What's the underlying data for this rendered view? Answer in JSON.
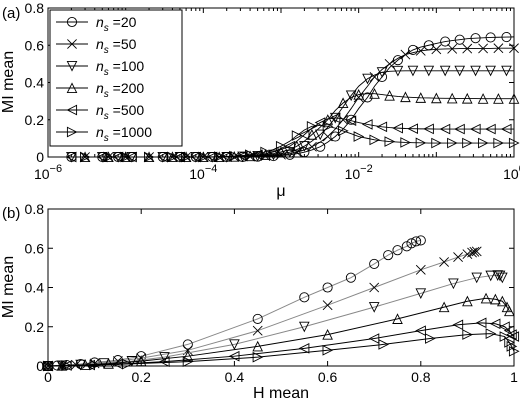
{
  "chart_data": [
    {
      "panel_label": "(a)",
      "type": "line",
      "xlabel": "μ",
      "ylabel": "MI mean",
      "xscale": "log",
      "xlim": [
        1e-06,
        1
      ],
      "ylim": [
        0,
        0.8
      ],
      "xticks": [
        {
          "value": 1e-06,
          "base": "10",
          "exp": "−6"
        },
        {
          "value": 0.0001,
          "base": "10",
          "exp": "−4"
        },
        {
          "value": 0.01,
          "base": "10",
          "exp": "−2"
        },
        {
          "value": 1,
          "base": "10",
          "exp": "0"
        }
      ],
      "yticks": [
        "0",
        "0.2",
        "0.4",
        "0.6",
        "0.8"
      ],
      "legend_position": "top-left",
      "x": [
        2e-06,
        3e-06,
        5e-06,
        6e-06,
        8e-06,
        1e-05,
        1.2e-05,
        2e-05,
        3e-05,
        4e-05,
        5e-05,
        6e-05,
        8e-05,
        0.0001,
        0.00013,
        0.00016,
        0.0002,
        0.00025,
        0.00032,
        0.0004,
        0.0005,
        0.00063,
        0.0008,
        0.001,
        0.0013,
        0.0016,
        0.002,
        0.0025,
        0.0032,
        0.004,
        0.005,
        0.0063,
        0.008,
        0.01,
        0.013,
        0.016,
        0.02,
        0.025,
        0.032,
        0.04,
        0.05,
        0.063,
        0.08,
        0.1,
        0.13,
        0.16,
        0.2,
        0.25,
        0.32,
        0.4,
        0.5,
        0.63,
        0.8,
        1.0
      ],
      "series": [
        {
          "name": "n_s=20",
          "label_base": "n",
          "label_sub": "s",
          "label_value": "=20",
          "marker": "circle",
          "line_color": "#000000",
          "values": [
            0,
            0,
            0,
            0,
            0,
            0,
            0,
            0,
            0,
            0,
            0,
            0,
            0,
            0,
            0,
            0,
            0,
            0,
            0,
            0.001,
            0.002,
            0.003,
            0.005,
            0.008,
            0.012,
            0.018,
            0.026,
            0.038,
            0.055,
            0.08,
            0.11,
            0.15,
            0.2,
            0.26,
            0.32,
            0.38,
            0.43,
            0.48,
            0.52,
            0.55,
            0.575,
            0.59,
            0.6,
            0.61,
            0.62,
            0.625,
            0.63,
            0.635,
            0.638,
            0.64,
            0.642,
            0.643,
            0.644,
            0.645
          ]
        },
        {
          "name": "n_s=50",
          "label_base": "n",
          "label_sub": "s",
          "label_value": "=50",
          "marker": "x",
          "line_color": "#000000",
          "values": [
            0,
            0,
            0,
            0,
            0,
            0,
            0,
            0,
            0,
            0,
            0,
            0,
            0,
            0,
            0,
            0,
            0,
            0,
            0.001,
            0.002,
            0.003,
            0.005,
            0.008,
            0.012,
            0.018,
            0.026,
            0.038,
            0.055,
            0.08,
            0.11,
            0.15,
            0.2,
            0.26,
            0.32,
            0.38,
            0.43,
            0.47,
            0.5,
            0.53,
            0.55,
            0.56,
            0.57,
            0.575,
            0.578,
            0.58,
            0.581,
            0.582,
            0.582,
            0.583,
            0.583,
            0.583,
            0.584,
            0.584,
            0.584
          ]
        },
        {
          "name": "n_s=100",
          "label_base": "n",
          "label_sub": "s",
          "label_value": "=100",
          "marker": "triangle-down",
          "line_color": "#000000",
          "values": [
            0,
            0,
            0,
            0,
            0,
            0,
            0,
            0,
            0,
            0,
            0,
            0,
            0,
            0,
            0,
            0,
            0,
            0.001,
            0.002,
            0.003,
            0.005,
            0.008,
            0.012,
            0.018,
            0.026,
            0.04,
            0.058,
            0.085,
            0.12,
            0.16,
            0.21,
            0.27,
            0.33,
            0.38,
            0.42,
            0.44,
            0.455,
            0.46,
            0.462,
            0.463,
            0.463,
            0.463,
            0.463,
            0.463,
            0.463,
            0.463,
            0.463,
            0.463,
            0.463,
            0.463,
            0.463,
            0.463,
            0.463,
            0.463
          ]
        },
        {
          "name": "n_s=200",
          "label_base": "n",
          "label_sub": "s",
          "label_value": "=200",
          "marker": "triangle-up",
          "line_color": "#000000",
          "values": [
            0,
            0,
            0,
            0,
            0,
            0,
            0,
            0,
            0,
            0,
            0,
            0,
            0,
            0,
            0,
            0,
            0.001,
            0.002,
            0.003,
            0.005,
            0.008,
            0.012,
            0.018,
            0.027,
            0.04,
            0.058,
            0.085,
            0.12,
            0.16,
            0.2,
            0.25,
            0.29,
            0.32,
            0.335,
            0.34,
            0.34,
            0.335,
            0.33,
            0.325,
            0.322,
            0.32,
            0.318,
            0.317,
            0.316,
            0.315,
            0.315,
            0.314,
            0.314,
            0.314,
            0.313,
            0.313,
            0.313,
            0.313,
            0.313
          ]
        },
        {
          "name": "n_s=500",
          "label_base": "n",
          "label_sub": "s",
          "label_value": "=500",
          "marker": "triangle-left",
          "line_color": "#000000",
          "values": [
            0,
            0,
            0,
            0,
            0,
            0,
            0,
            0,
            0,
            0,
            0,
            0,
            0,
            0,
            0,
            0.001,
            0.002,
            0.003,
            0.005,
            0.008,
            0.012,
            0.018,
            0.027,
            0.04,
            0.058,
            0.085,
            0.12,
            0.155,
            0.185,
            0.205,
            0.21,
            0.205,
            0.195,
            0.185,
            0.175,
            0.168,
            0.162,
            0.158,
            0.155,
            0.153,
            0.152,
            0.151,
            0.151,
            0.15,
            0.15,
            0.15,
            0.15,
            0.15,
            0.15,
            0.15,
            0.15,
            0.15,
            0.15,
            0.15
          ]
        },
        {
          "name": "n_s=1000",
          "label_base": "n",
          "label_sub": "s",
          "label_value": "=1000",
          "marker": "triangle-right",
          "line_color": "#000000",
          "values": [
            0,
            0,
            0,
            0,
            0,
            0,
            0,
            0,
            0,
            0,
            0,
            0,
            0,
            0,
            0.001,
            0.002,
            0.003,
            0.005,
            0.008,
            0.012,
            0.018,
            0.027,
            0.04,
            0.058,
            0.085,
            0.115,
            0.145,
            0.165,
            0.17,
            0.165,
            0.155,
            0.14,
            0.125,
            0.11,
            0.1,
            0.092,
            0.087,
            0.083,
            0.08,
            0.078,
            0.077,
            0.076,
            0.075,
            0.075,
            0.075,
            0.075,
            0.075,
            0.075,
            0.075,
            0.075,
            0.075,
            0.075,
            0.075,
            0.075
          ]
        }
      ]
    },
    {
      "panel_label": "(b)",
      "type": "line",
      "xlabel": "H mean",
      "ylabel": "MI mean",
      "xlim": [
        0,
        1
      ],
      "ylim": [
        0,
        0.8
      ],
      "xticks": [
        "0",
        "0.2",
        "0.4",
        "0.6",
        "0.8",
        "1"
      ],
      "yticks": [
        "0",
        "0.2",
        "0.4",
        "0.6",
        "0.8"
      ],
      "series": [
        {
          "name": "n_s=20",
          "marker": "circle",
          "line_color": "#888888",
          "points": [
            [
              0,
              0
            ],
            [
              0.02,
              0.002
            ],
            [
              0.04,
              0.005
            ],
            [
              0.07,
              0.01
            ],
            [
              0.1,
              0.018
            ],
            [
              0.15,
              0.03
            ],
            [
              0.2,
              0.05
            ],
            [
              0.3,
              0.11
            ],
            [
              0.45,
              0.24
            ],
            [
              0.55,
              0.35
            ],
            [
              0.6,
              0.4
            ],
            [
              0.65,
              0.45
            ],
            [
              0.7,
              0.52
            ],
            [
              0.73,
              0.565
            ],
            [
              0.75,
              0.59
            ],
            [
              0.77,
              0.61
            ],
            [
              0.78,
              0.625
            ],
            [
              0.79,
              0.635
            ],
            [
              0.8,
              0.64
            ]
          ]
        },
        {
          "name": "n_s=50",
          "marker": "x",
          "line_color": "#888888",
          "points": [
            [
              0,
              0
            ],
            [
              0.03,
              0.002
            ],
            [
              0.06,
              0.006
            ],
            [
              0.1,
              0.013
            ],
            [
              0.15,
              0.025
            ],
            [
              0.2,
              0.04
            ],
            [
              0.3,
              0.08
            ],
            [
              0.45,
              0.18
            ],
            [
              0.6,
              0.31
            ],
            [
              0.7,
              0.4
            ],
            [
              0.8,
              0.49
            ],
            [
              0.85,
              0.53
            ],
            [
              0.88,
              0.555
            ],
            [
              0.9,
              0.57
            ],
            [
              0.91,
              0.578
            ],
            [
              0.915,
              0.582
            ],
            [
              0.92,
              0.584
            ]
          ]
        },
        {
          "name": "n_s=100",
          "marker": "triangle-down",
          "line_color": "#888888",
          "points": [
            [
              0,
              0
            ],
            [
              0.03,
              0.002
            ],
            [
              0.07,
              0.006
            ],
            [
              0.12,
              0.014
            ],
            [
              0.18,
              0.025
            ],
            [
              0.25,
              0.045
            ],
            [
              0.4,
              0.11
            ],
            [
              0.55,
              0.2
            ],
            [
              0.7,
              0.3
            ],
            [
              0.8,
              0.37
            ],
            [
              0.87,
              0.42
            ],
            [
              0.92,
              0.45
            ],
            [
              0.95,
              0.46
            ],
            [
              0.965,
              0.462
            ],
            [
              0.97,
              0.46
            ],
            [
              0.975,
              0.45
            ]
          ]
        },
        {
          "name": "n_s=200",
          "marker": "triangle-up",
          "line_color": "#000000",
          "points": [
            [
              0,
              0
            ],
            [
              0.03,
              0.002
            ],
            [
              0.08,
              0.006
            ],
            [
              0.13,
              0.012
            ],
            [
              0.2,
              0.025
            ],
            [
              0.3,
              0.05
            ],
            [
              0.45,
              0.1
            ],
            [
              0.6,
              0.16
            ],
            [
              0.75,
              0.24
            ],
            [
              0.85,
              0.3
            ],
            [
              0.9,
              0.33
            ],
            [
              0.94,
              0.345
            ],
            [
              0.96,
              0.34
            ],
            [
              0.975,
              0.33
            ],
            [
              0.985,
              0.3
            ],
            [
              0.99,
              0.28
            ]
          ]
        },
        {
          "name": "n_s=500",
          "marker": "triangle-left",
          "line_color": "#000000",
          "points": [
            [
              0,
              0
            ],
            [
              0.04,
              0.002
            ],
            [
              0.09,
              0.005
            ],
            [
              0.15,
              0.01
            ],
            [
              0.25,
              0.022
            ],
            [
              0.4,
              0.05
            ],
            [
              0.55,
              0.09
            ],
            [
              0.7,
              0.14
            ],
            [
              0.8,
              0.18
            ],
            [
              0.88,
              0.21
            ],
            [
              0.93,
              0.22
            ],
            [
              0.96,
              0.215
            ],
            [
              0.98,
              0.2
            ],
            [
              0.99,
              0.18
            ],
            [
              0.995,
              0.16
            ],
            [
              1.0,
              0.15
            ]
          ]
        },
        {
          "name": "n_s=1000",
          "marker": "triangle-right",
          "line_color": "#000000",
          "points": [
            [
              0,
              0
            ],
            [
              0.04,
              0.002
            ],
            [
              0.1,
              0.005
            ],
            [
              0.17,
              0.01
            ],
            [
              0.3,
              0.022
            ],
            [
              0.45,
              0.045
            ],
            [
              0.6,
              0.08
            ],
            [
              0.72,
              0.11
            ],
            [
              0.82,
              0.14
            ],
            [
              0.9,
              0.16
            ],
            [
              0.95,
              0.165
            ],
            [
              0.98,
              0.15
            ],
            [
              0.99,
              0.12
            ],
            [
              0.995,
              0.1
            ],
            [
              1.0,
              0.075
            ]
          ]
        }
      ]
    }
  ]
}
